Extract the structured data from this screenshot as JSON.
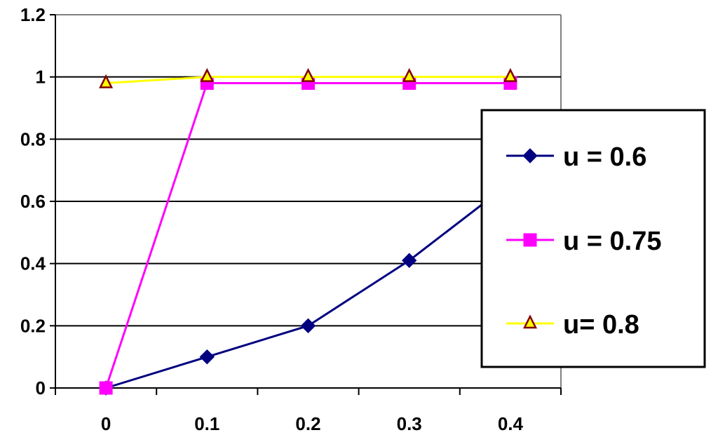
{
  "chart_data": {
    "type": "line",
    "title": "",
    "xlabel": "",
    "ylabel": "",
    "categories": [
      "0",
      "0.1",
      "0.2",
      "0.3",
      "0.4"
    ],
    "ylim": [
      0,
      1.2
    ],
    "y_ticks": [
      "0",
      "0.2",
      "0.4",
      "0.6",
      "0.8",
      "1",
      "1.2"
    ],
    "grid": "horizontal",
    "legend_position": "right",
    "series": [
      {
        "name": "u = 0.6",
        "values": [
          0,
          0.1,
          0.2,
          0.41,
          0.66
        ],
        "color": "#000080",
        "marker": "diamond"
      },
      {
        "name": "u = 0.75",
        "values": [
          0,
          0.98,
          0.98,
          0.98,
          0.98
        ],
        "color": "#FF00FF",
        "marker": "square"
      },
      {
        "name": "u= 0.8",
        "values": [
          0.98,
          1,
          1,
          1,
          1
        ],
        "color": "#FFFF00",
        "marker": "triangle",
        "marker_fill": "#FFFF00",
        "marker_stroke": "#800000"
      }
    ]
  }
}
